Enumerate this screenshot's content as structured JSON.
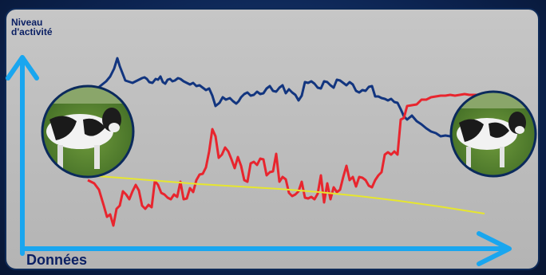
{
  "chart_data": {
    "type": "line",
    "ylabel": "Niveau d'activité",
    "ylabel_lines": [
      "Niveau",
      "d'activité"
    ],
    "xlabel": "Données",
    "grid": false,
    "legend": "none",
    "images": [
      {
        "name": "cow-photo-left",
        "subject": "Holstein cow"
      },
      {
        "name": "cow-photo-right",
        "subject": "Holstein cow"
      }
    ],
    "series": [
      {
        "color": "#12357f",
        "x": [
          117,
          123,
          128,
          133,
          138,
          143,
          147,
          150,
          157,
          160,
          166,
          172,
          178,
          181,
          184,
          187,
          191,
          195,
          198,
          201,
          204,
          207,
          210,
          213,
          216,
          219,
          223,
          226,
          230,
          234,
          238,
          242,
          246,
          250,
          254,
          258,
          262,
          266,
          270,
          275,
          279,
          283,
          288,
          292,
          296,
          299,
          302,
          306,
          310,
          314,
          318,
          322,
          326,
          330,
          334,
          338,
          342,
          346,
          350,
          354,
          358,
          362,
          366,
          370,
          374,
          378,
          382,
          386,
          390,
          394,
          398,
          402,
          406,
          410,
          414,
          418,
          422,
          426,
          430,
          434,
          438,
          442,
          446,
          450,
          454,
          458,
          462,
          466,
          470,
          474,
          478,
          482,
          486,
          490,
          494,
          498,
          502,
          506,
          510,
          516,
          522,
          528,
          534,
          540,
          546,
          552,
          558,
          564,
          570,
          576,
          582,
          588,
          594,
          600,
          606,
          612,
          618,
          624,
          630
        ],
        "y": [
          118,
          110,
          106,
          102,
          96,
          86,
          73,
          83,
          101,
          102,
          104,
          101,
          98,
          97,
          99,
          103,
          104,
          99,
          100,
          96,
          103,
          105,
          100,
          99,
          102,
          101,
          98,
          99,
          102,
          104,
          106,
          104,
          108,
          107,
          110,
          113,
          111,
          120,
          133,
          129,
          122,
          125,
          123,
          127,
          130,
          127,
          122,
          118,
          116,
          120,
          119,
          115,
          118,
          117,
          111,
          108,
          114,
          115,
          110,
          107,
          117,
          112,
          116,
          119,
          126,
          120,
          103,
          104,
          102,
          105,
          110,
          111,
          102,
          103,
          107,
          110,
          100,
          101,
          104,
          107,
          103,
          106,
          114,
          116,
          113,
          114,
          109,
          108,
          121,
          121,
          123,
          124,
          126,
          124,
          128,
          129,
          137,
          146,
          150,
          145,
          152,
          156,
          161,
          165,
          167,
          171,
          170,
          171,
          172,
          173,
          175,
          174,
          176,
          177,
          177,
          175,
          177,
          176,
          178
        ]
      },
      {
        "color": "#e8252e",
        "x": [
          110,
          118,
          124,
          130,
          134,
          138,
          142,
          146,
          150,
          154,
          158,
          162,
          166,
          170,
          174,
          178,
          182,
          186,
          190,
          194,
          198,
          202,
          206,
          210,
          214,
          218,
          222,
          226,
          230,
          234,
          238,
          242,
          246,
          250,
          254,
          258,
          262,
          266,
          270,
          274,
          278,
          282,
          286,
          290,
          294,
          298,
          302,
          306,
          310,
          314,
          318,
          322,
          326,
          330,
          334,
          338,
          342,
          346,
          350,
          354,
          358,
          362,
          366,
          370,
          374,
          378,
          382,
          386,
          390,
          394,
          398,
          402,
          406,
          410,
          414,
          418,
          422,
          426,
          430,
          434,
          438,
          442,
          446,
          450,
          454,
          458,
          462,
          466,
          470,
          474,
          478,
          482,
          486,
          490,
          494,
          498,
          502,
          506,
          510,
          516,
          522,
          528,
          534,
          540,
          546,
          552,
          558,
          564,
          570,
          576,
          582,
          588,
          594,
          600,
          606,
          612,
          618,
          624,
          630
        ],
        "y": [
          226,
          230,
          238,
          258,
          272,
          269,
          283,
          262,
          258,
          240,
          244,
          250,
          240,
          232,
          239,
          258,
          262,
          257,
          260,
          227,
          232,
          242,
          244,
          248,
          250,
          244,
          247,
          228,
          250,
          249,
          236,
          241,
          226,
          219,
          218,
          210,
          190,
          162,
          171,
          198,
          194,
          185,
          190,
          200,
          211,
          197,
          208,
          226,
          228,
          205,
          203,
          207,
          199,
          200,
          220,
          216,
          215,
          193,
          228,
          222,
          225,
          242,
          246,
          244,
          240,
          228,
          248,
          249,
          247,
          250,
          243,
          220,
          254,
          230,
          250,
          235,
          241,
          238,
          222,
          208,
          226,
          222,
          234,
          222,
          223,
          226,
          233,
          235,
          226,
          220,
          216,
          194,
          191,
          194,
          190,
          194,
          150,
          148,
          133,
          132,
          131,
          125,
          125,
          122,
          121,
          120,
          120,
          119,
          120,
          119,
          118,
          119,
          119,
          119,
          118,
          119,
          120,
          119,
          120
        ]
      },
      {
        "color": "#e6e62e",
        "x": [
          108,
          150,
          200,
          250,
          300,
          350,
          400,
          450,
          500,
          550,
          607
        ],
        "y": [
          220,
          223,
          227,
          231,
          234,
          237,
          241,
          246,
          252,
          259,
          268
        ]
      }
    ]
  }
}
